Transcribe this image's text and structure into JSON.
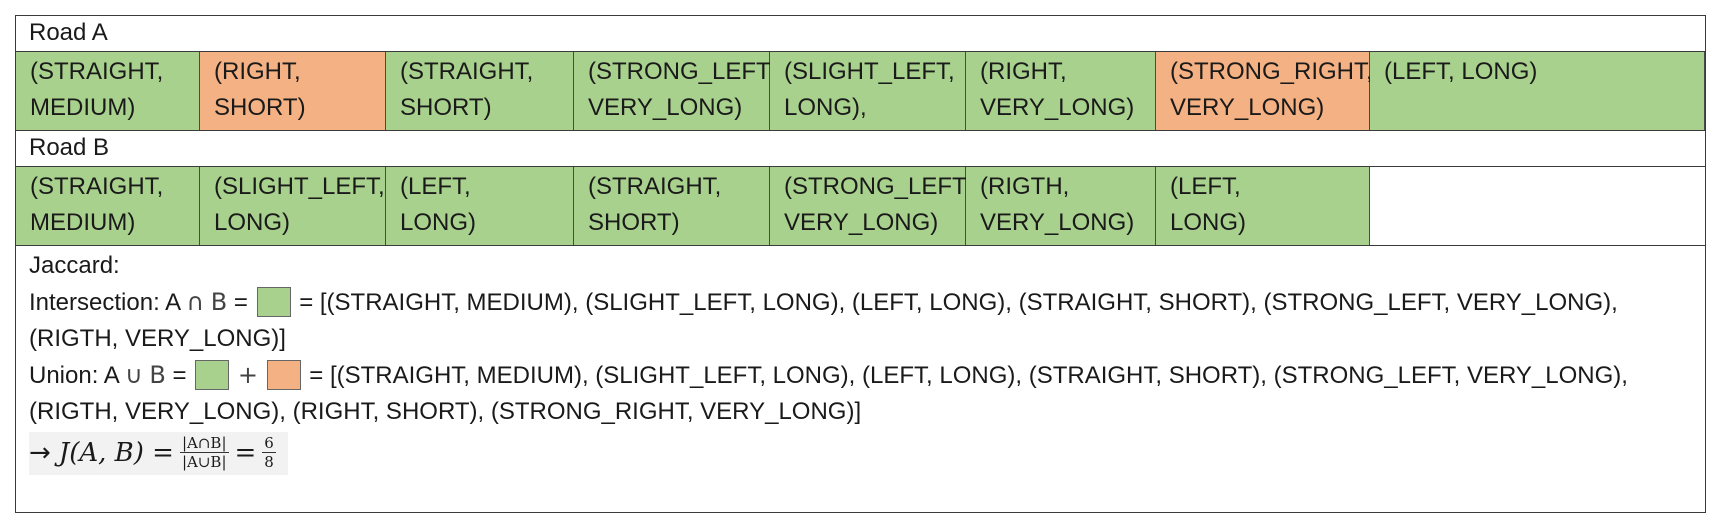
{
  "road_a": {
    "label": "Road A",
    "cells": [
      {
        "text": "(STRAIGHT,\nMEDIUM)",
        "color": "green"
      },
      {
        "text": "(RIGHT,\nSHORT)",
        "color": "orange"
      },
      {
        "text": "(STRAIGHT,\nSHORT)",
        "color": "green"
      },
      {
        "text": "(STRONG_LEFT,\nVERY_LONG)",
        "color": "green"
      },
      {
        "text": "(SLIGHT_LEFT,\nLONG),",
        "color": "green"
      },
      {
        "text": "(RIGHT,\nVERY_LONG)",
        "color": "green"
      },
      {
        "text": "(STRONG_RIGHT,\nVERY_LONG)",
        "color": "orange"
      },
      {
        "text": "(LEFT, LONG)",
        "color": "green"
      }
    ]
  },
  "road_b": {
    "label": "Road B",
    "cells": [
      {
        "text": "(STRAIGHT,\nMEDIUM)",
        "color": "green"
      },
      {
        "text": "(SLIGHT_LEFT,\nLONG)",
        "color": "green"
      },
      {
        "text": "(LEFT,\nLONG)",
        "color": "green"
      },
      {
        "text": "(STRAIGHT,\nSHORT)",
        "color": "green"
      },
      {
        "text": "(STRONG_LEFT,\nVERY_LONG)",
        "color": "green"
      },
      {
        "text": "(RIGTH,\nVERY_LONG)",
        "color": "green"
      },
      {
        "text": "(LEFT,\nLONG)",
        "color": "green"
      },
      {
        "text": "",
        "color": "white"
      }
    ]
  },
  "colors": {
    "green": "#a9d18e",
    "orange": "#f4b183"
  },
  "jaccard": {
    "title": "Jaccard:",
    "intersection_prefix": "Intersection: A",
    "intersection_symbol": "∩",
    "set_b": "B",
    "equals": "=",
    "intersection_list_line1": "= [(STRAIGHT, MEDIUM), (SLIGHT_LEFT, LONG), (LEFT, LONG), (STRAIGHT, SHORT), (STRONG_LEFT, VERY_LONG),",
    "intersection_list_line2": "(RIGTH, VERY_LONG)]",
    "union_prefix": "Union: A",
    "union_symbol": "∪",
    "plus": "+",
    "union_list_line1": "= [(STRAIGHT, MEDIUM), (SLIGHT_LEFT, LONG), (LEFT, LONG), (STRAIGHT, SHORT), (STRONG_LEFT, VERY_LONG),",
    "union_list_line2": "(RIGTH, VERY_LONG), (RIGHT, SHORT), (STRONG_RIGHT, VERY_LONG)]",
    "arrow": "→",
    "formula_lhs": "J(A, B) =",
    "frac1_num": "|A∩B|",
    "frac1_den": "|A∪B|",
    "formula_eq": "=",
    "frac2_num": "6",
    "frac2_den": "8"
  }
}
